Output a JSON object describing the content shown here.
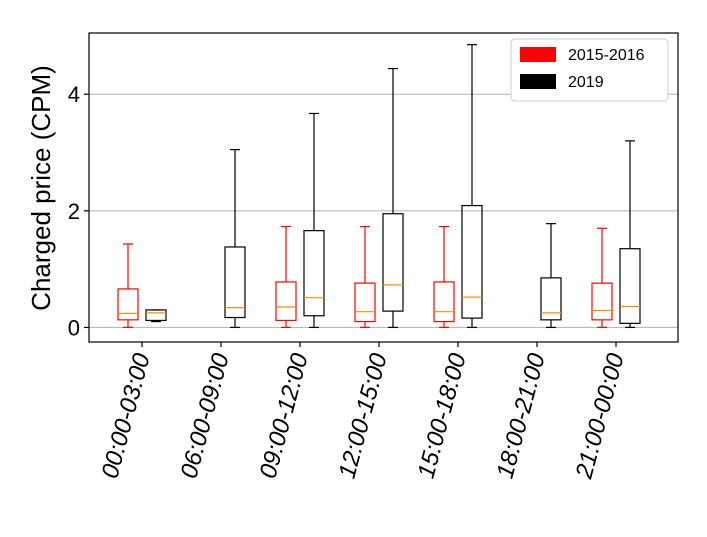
{
  "chart_data": {
    "type": "boxplot",
    "title": "",
    "xlabel": "",
    "ylabel": "Charged price (CPM)",
    "ylim": [
      -0.25,
      5.05
    ],
    "yticks": [
      0,
      2,
      4
    ],
    "grid": "horizontal",
    "legend_position": "top-right",
    "categories": [
      "00:00-03:00",
      "06:00-09:00",
      "09:00-12:00",
      "12:00-15:00",
      "15:00-18:00",
      "18:00-21:00",
      "21:00-00:00"
    ],
    "series": [
      {
        "name": "2015-2016",
        "box_color": "#ff0000",
        "median_color": "#ff8c00",
        "boxes": [
          {
            "category": "00:00-03:00",
            "whislo": 0.0,
            "q1": 0.13,
            "med": 0.24,
            "q3": 0.66,
            "whishi": 1.43
          },
          {
            "category": "09:00-12:00",
            "whislo": 0.0,
            "q1": 0.12,
            "med": 0.35,
            "q3": 0.78,
            "whishi": 1.73
          },
          {
            "category": "12:00-15:00",
            "whislo": 0.0,
            "q1": 0.1,
            "med": 0.27,
            "q3": 0.76,
            "whishi": 1.73
          },
          {
            "category": "15:00-18:00",
            "whislo": 0.0,
            "q1": 0.1,
            "med": 0.27,
            "q3": 0.78,
            "whishi": 1.73
          },
          {
            "category": "21:00-00:00",
            "whislo": 0.0,
            "q1": 0.13,
            "med": 0.29,
            "q3": 0.76,
            "whishi": 1.7
          }
        ]
      },
      {
        "name": "2019",
        "box_color": "#000000",
        "median_color": "#ff8c00",
        "boxes": [
          {
            "category": "00:00-03:00",
            "whislo": 0.1,
            "q1": 0.12,
            "med": 0.25,
            "q3": 0.3,
            "whishi": 0.3
          },
          {
            "category": "06:00-09:00",
            "whislo": 0.0,
            "q1": 0.17,
            "med": 0.34,
            "q3": 1.38,
            "whishi": 3.05
          },
          {
            "category": "09:00-12:00",
            "whislo": 0.0,
            "q1": 0.2,
            "med": 0.51,
            "q3": 1.66,
            "whishi": 3.67
          },
          {
            "category": "12:00-15:00",
            "whislo": 0.0,
            "q1": 0.28,
            "med": 0.73,
            "q3": 1.95,
            "whishi": 4.44
          },
          {
            "category": "15:00-18:00",
            "whislo": 0.0,
            "q1": 0.16,
            "med": 0.52,
            "q3": 2.09,
            "whishi": 4.85
          },
          {
            "category": "18:00-21:00",
            "whislo": 0.0,
            "q1": 0.13,
            "med": 0.25,
            "q3": 0.85,
            "whishi": 1.78
          },
          {
            "category": "21:00-00:00",
            "whislo": 0.0,
            "q1": 0.07,
            "med": 0.36,
            "q3": 1.35,
            "whishi": 3.2
          }
        ]
      }
    ],
    "legend": [
      {
        "label": "2015-2016",
        "color": "#ff0000"
      },
      {
        "label": "2019",
        "color": "#000000"
      }
    ]
  }
}
